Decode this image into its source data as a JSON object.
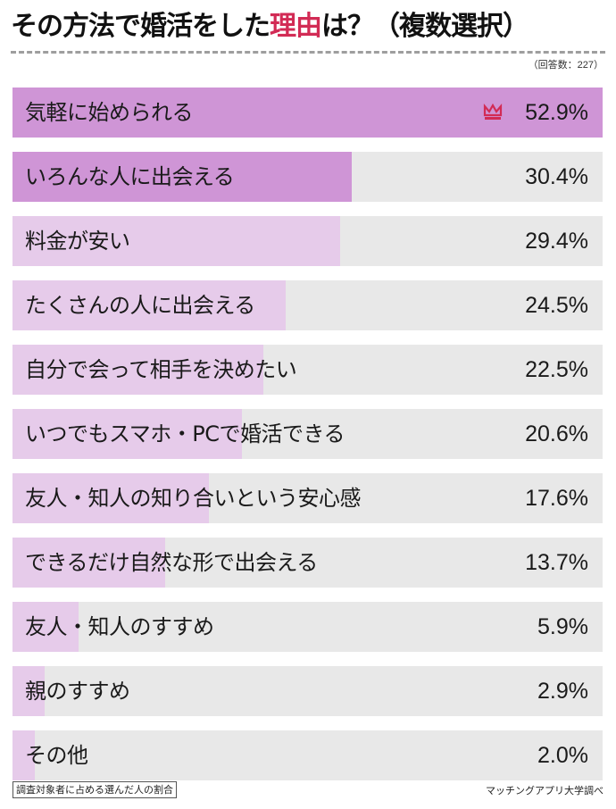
{
  "header": {
    "title_prefix": "その方法で婚活をした",
    "title_accent": "理由",
    "title_suffix": "は？（複数選択）",
    "sample_size": "（回答数：227）"
  },
  "colors": {
    "top_fill": "#cf95d6",
    "light_fill": "#e6cbea",
    "track": "#e8e8e8",
    "accent": "#d22b55",
    "dash": "#9e9e9e"
  },
  "rows": [
    {
      "label": "気軽に始められる",
      "value": "52.9%",
      "top": true
    },
    {
      "label": "いろんな人に出会える",
      "value": "30.4%",
      "top": true
    },
    {
      "label": "料金が安い",
      "value": "29.4%"
    },
    {
      "label": "たくさんの人に出会える",
      "value": "24.5%"
    },
    {
      "label": "自分で会って相手を決めたい",
      "value": "22.5%"
    },
    {
      "label": "いつでもスマホ・PCで婚活できる",
      "value": "20.6%"
    },
    {
      "label": "友人・知人の知り合いという安心感",
      "value": "17.6%"
    },
    {
      "label": "できるだけ自然な形で出会える",
      "value": "13.7%"
    },
    {
      "label": "友人・知人のすすめ",
      "value": "5.9%"
    },
    {
      "label": "親のすすめ",
      "value": "2.9%"
    },
    {
      "label": "その他",
      "value": "2.0%"
    }
  ],
  "crown_icon": "crown-icon",
  "footer": {
    "note": "調査対象者に占める選んだ人の割合",
    "source": "マッチングアプリ大学調べ"
  },
  "chart_data": {
    "type": "bar",
    "orientation": "horizontal",
    "title": "その方法で婚活をした理由は？（複数選択）",
    "subtitle": "（回答数：227）",
    "categories": [
      "気軽に始められる",
      "いろんな人に出会える",
      "料金が安い",
      "たくさんの人に出会える",
      "自分で会って相手を決めたい",
      "いつでもスマホ・PCで婚活できる",
      "友人・知人の知り合いという安心感",
      "できるだけ自然な形で出会える",
      "友人・知人のすすめ",
      "親のすすめ",
      "その他"
    ],
    "values": [
      52.9,
      30.4,
      29.4,
      24.5,
      22.5,
      20.6,
      17.6,
      13.7,
      5.9,
      2.9,
      2.0
    ],
    "unit": "%",
    "xlabel": "",
    "ylabel": "",
    "xlim": [
      0,
      52.9
    ],
    "grid": false,
    "legend": null,
    "annotations": [
      "1位に王冠アイコン",
      "調査対象者に占める選んだ人の割合",
      "マッチングアプリ大学調べ"
    ]
  }
}
